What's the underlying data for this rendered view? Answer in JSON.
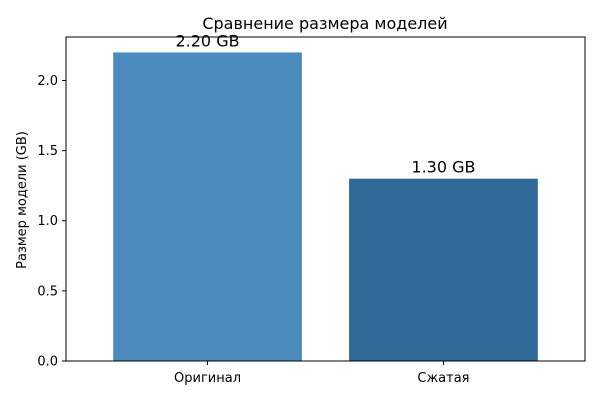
{
  "chart_data": {
    "type": "bar",
    "title": "Сравнение размера моделей",
    "xlabel": "",
    "ylabel": "Размер модели (GB)",
    "categories": [
      "Оригинал",
      "Сжатая"
    ],
    "values": [
      2.2,
      1.3
    ],
    "data_labels": [
      "2.20 GB",
      "1.30 GB"
    ],
    "colors": [
      "#4b8bbe",
      "#306998"
    ],
    "ylim": [
      0,
      2.31
    ],
    "yticks": [
      0.0,
      0.5,
      1.0,
      1.5,
      2.0
    ],
    "ytick_labels": [
      "0.0",
      "0.5",
      "1.0",
      "1.5",
      "2.0"
    ],
    "grid": false,
    "legend": "none"
  }
}
